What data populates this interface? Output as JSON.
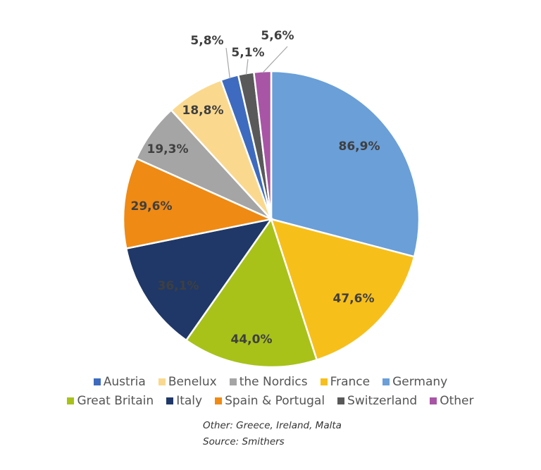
{
  "chart_data": {
    "type": "pie",
    "categories": [
      "Germany",
      "France",
      "Great Britain",
      "Italy",
      "Spain & Portugal",
      "the Nordics",
      "Benelux",
      "Austria",
      "Switzerland",
      "Other"
    ],
    "values": [
      86.9,
      47.6,
      44.0,
      36.1,
      29.6,
      19.3,
      18.8,
      5.8,
      5.1,
      5.6
    ],
    "data_labels": [
      "86,9%",
      "47,6%",
      "44,0%",
      "36,1%",
      "29,6%",
      "19,3%",
      "18,8%",
      "5,8%",
      "5,1%",
      "5,6%"
    ],
    "colors": [
      "#6a9fd8",
      "#f7bf1a",
      "#a8c219",
      "#1f3868",
      "#ef8a14",
      "#a5a5a5",
      "#fad98e",
      "#3e6bbf",
      "#595959",
      "#a855a6"
    ],
    "legend_placement": "bottom",
    "title": "",
    "legend": {
      "row1": [
        {
          "label": "Austria",
          "color": "#3e6bbf"
        },
        {
          "label": "Benelux",
          "color": "#fad98e"
        },
        {
          "label": "the Nordics",
          "color": "#a5a5a5"
        },
        {
          "label": "France",
          "color": "#f7bf1a"
        },
        {
          "label": "Germany",
          "color": "#6a9fd8"
        }
      ],
      "row2": [
        {
          "label": "Great Britain",
          "color": "#a8c219"
        },
        {
          "label": "Italy",
          "color": "#1f3868"
        },
        {
          "label": "Spain & Portugal",
          "color": "#ef8a14"
        },
        {
          "label": "Switzerland",
          "color": "#595959"
        },
        {
          "label": "Other",
          "color": "#a855a6"
        }
      ]
    }
  },
  "notes": {
    "other": "Other: Greece, Ireland, Malta",
    "source": "Source: Smithers"
  }
}
